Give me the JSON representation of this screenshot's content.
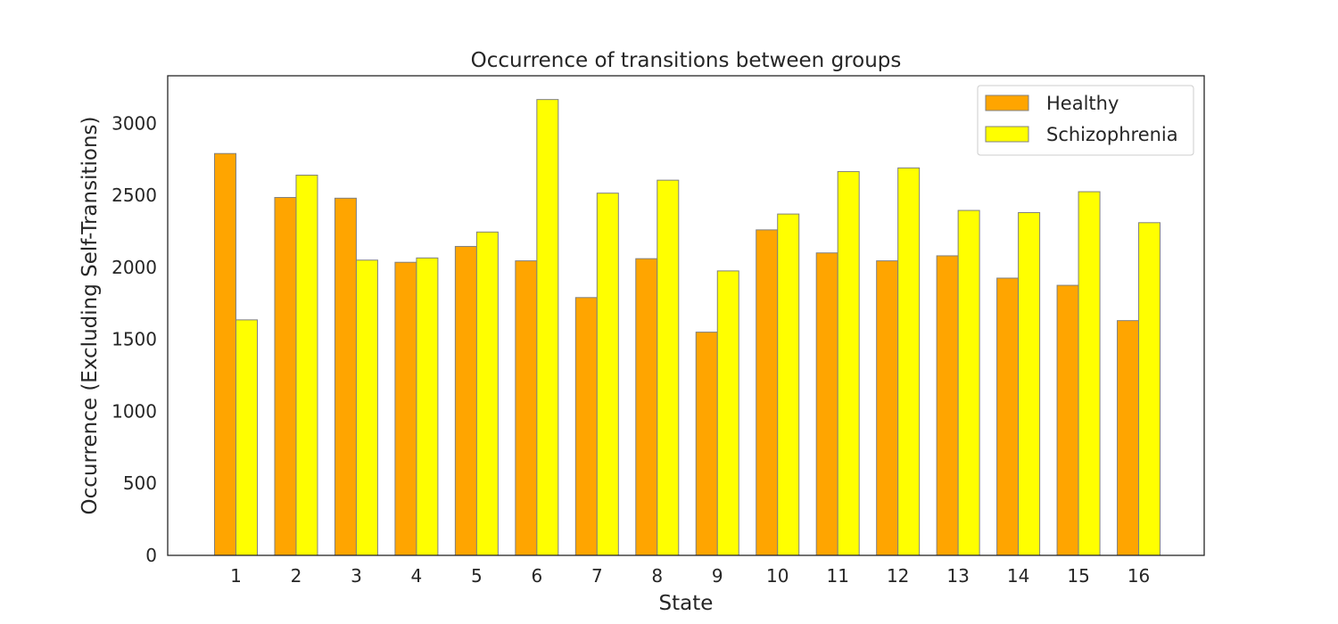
{
  "chart_data": {
    "type": "bar",
    "title": "Occurrence of transitions between groups",
    "xlabel": "State",
    "ylabel": "Occurrence (Excluding Self-Transitions)",
    "categories": [
      "1",
      "2",
      "3",
      "4",
      "5",
      "6",
      "7",
      "8",
      "9",
      "10",
      "11",
      "12",
      "13",
      "14",
      "15",
      "16"
    ],
    "series": [
      {
        "name": "Healthy",
        "color": "#FFA500",
        "values": [
          2790,
          2485,
          2480,
          2035,
          2145,
          2045,
          1790,
          2060,
          1550,
          2260,
          2100,
          2045,
          2080,
          1925,
          1875,
          1630
        ]
      },
      {
        "name": "Schizophrenia",
        "color": "#FFFF00",
        "values": [
          1635,
          2640,
          2050,
          2065,
          2245,
          3165,
          2515,
          2605,
          1975,
          2370,
          2665,
          2690,
          2395,
          2380,
          2525,
          2310
        ]
      }
    ],
    "ylim": [
      0,
      3330
    ],
    "yticks": [
      0,
      500,
      1000,
      1500,
      2000,
      2500,
      3000
    ],
    "grid": false,
    "legend_position": "top-right",
    "bar_edge_color": "#808080"
  }
}
